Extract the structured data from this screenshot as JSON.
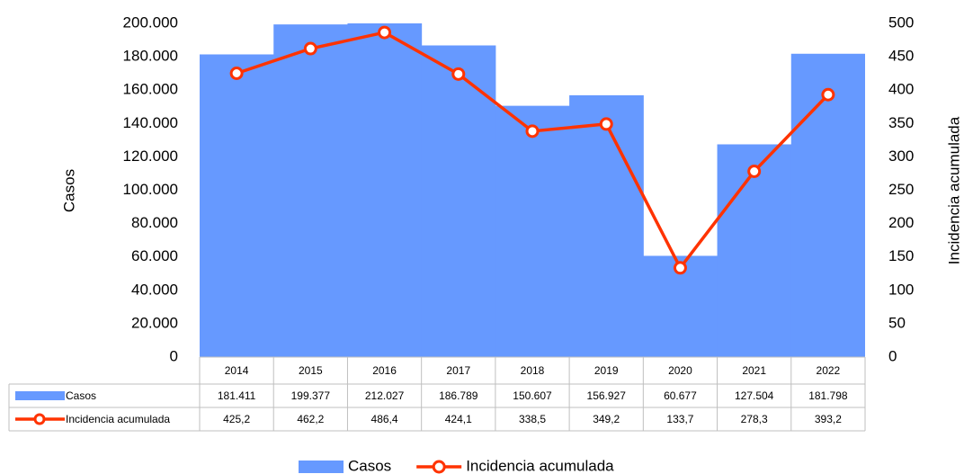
{
  "chart_data": {
    "type": "bar",
    "categories": [
      "2014",
      "2015",
      "2016",
      "2017",
      "2018",
      "2019",
      "2020",
      "2021",
      "2022"
    ],
    "series": [
      {
        "name": "Casos",
        "type": "bar",
        "color": "#6699ff",
        "values": [
          181411,
          199377,
          212027,
          186789,
          150607,
          156927,
          60677,
          127504,
          181798
        ],
        "value_labels": [
          "181.411",
          "199.377",
          "212.027",
          "186.789",
          "150.607",
          "156.927",
          "60.677",
          "127.504",
          "181.798"
        ]
      },
      {
        "name": "Incidencia acumulada",
        "type": "line",
        "axis": "y2",
        "color": "#ff3300",
        "values": [
          425.2,
          462.2,
          486.4,
          424.1,
          338.5,
          349.2,
          133.7,
          278.3,
          393.2
        ],
        "value_labels": [
          "425,2",
          "462,2",
          "486,4",
          "424,1",
          "338,5",
          "349,2",
          "133,7",
          "278,3",
          "393,2"
        ]
      }
    ],
    "ylabel": "Casos",
    "y2label": "Incidencia acumulada",
    "ylim": [
      0,
      200000
    ],
    "yticks": [
      0,
      {
        "value": 20000,
        "label": "20.000"
      },
      {
        "value": 40000,
        "label": "40.000"
      },
      {
        "value": 60000,
        "label": "60.000"
      },
      {
        "value": 80000,
        "label": "80.000"
      },
      {
        "value": 100000,
        "label": "100.000"
      },
      {
        "value": 120000,
        "label": "120.000"
      },
      {
        "value": 140000,
        "label": "140.000"
      },
      {
        "value": 160000,
        "label": "160.000"
      },
      {
        "value": 180000,
        "label": "180.000"
      },
      {
        "value": 200000,
        "label": "200.000"
      }
    ],
    "y2lim": [
      0,
      500
    ],
    "y2ticks": [
      0,
      50,
      100,
      150,
      200,
      250,
      300,
      350,
      400,
      450,
      500
    ],
    "legend": "bottom"
  }
}
